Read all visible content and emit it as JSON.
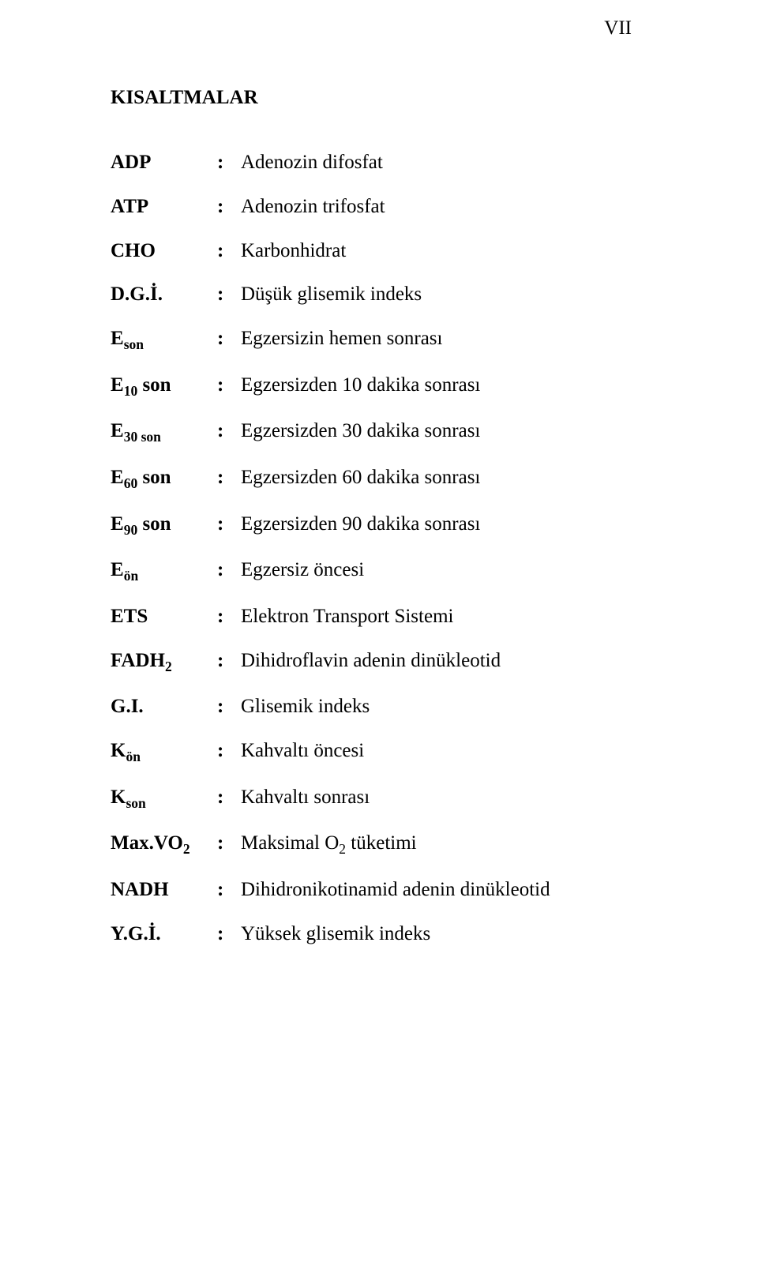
{
  "page_number": "VII",
  "heading": "KISALTMALAR",
  "rows": [
    {
      "key_pre": "ADP",
      "key_sub": "",
      "key_post": "",
      "sep": ":",
      "val_pre": "Adenozin difosfat",
      "val_sub": "",
      "val_post": ""
    },
    {
      "key_pre": "ATP",
      "key_sub": "",
      "key_post": "",
      "sep": ":",
      "val_pre": "Adenozin trifosfat",
      "val_sub": "",
      "val_post": ""
    },
    {
      "key_pre": "CHO",
      "key_sub": "",
      "key_post": "",
      "sep": ":",
      "val_pre": "Karbonhidrat",
      "val_sub": "",
      "val_post": ""
    },
    {
      "key_pre": "D.G.İ.",
      "key_sub": "",
      "key_post": "",
      "sep": ":",
      "val_pre": "Düşük glisemik indeks",
      "val_sub": "",
      "val_post": ""
    },
    {
      "key_pre": "E",
      "key_sub": "son",
      "key_post": "",
      "sep": ":",
      "val_pre": "Egzersizin hemen sonrası",
      "val_sub": "",
      "val_post": ""
    },
    {
      "key_pre": "E",
      "key_sub": "10",
      "key_post": " son",
      "sep": ":",
      "val_pre": "Egzersizden 10 dakika sonrası",
      "val_sub": "",
      "val_post": ""
    },
    {
      "key_pre": "E",
      "key_sub": "30 son",
      "key_post": "",
      "sep": ":",
      "val_pre": "Egzersizden 30 dakika sonrası",
      "val_sub": "",
      "val_post": ""
    },
    {
      "key_pre": "E",
      "key_sub": "60",
      "key_post": " son",
      "sep": ":",
      "val_pre": "Egzersizden 60 dakika sonrası",
      "val_sub": "",
      "val_post": ""
    },
    {
      "key_pre": "E",
      "key_sub": "90",
      "key_post": " son",
      "sep": ":",
      "val_pre": "Egzersizden 90 dakika sonrası",
      "val_sub": "",
      "val_post": ""
    },
    {
      "key_pre": "E",
      "key_sub": "ön",
      "key_post": "",
      "sep": ":",
      "val_pre": "Egzersiz öncesi",
      "val_sub": "",
      "val_post": ""
    },
    {
      "key_pre": "ETS",
      "key_sub": "",
      "key_post": "",
      "sep": ":",
      "val_pre": "Elektron Transport Sistemi",
      "val_sub": "",
      "val_post": ""
    },
    {
      "key_pre": "FADH",
      "key_sub": "2",
      "key_post": "",
      "sep": ":",
      "val_pre": "Dihidroflavin adenin dinükleotid",
      "val_sub": "",
      "val_post": ""
    },
    {
      "key_pre": "G.I.",
      "key_sub": "",
      "key_post": "",
      "sep": ":",
      "val_pre": "Glisemik indeks",
      "val_sub": "",
      "val_post": ""
    },
    {
      "key_pre": "K",
      "key_sub": "ön",
      "key_post": "",
      "sep": ":",
      "val_pre": "Kahvaltı öncesi",
      "val_sub": "",
      "val_post": ""
    },
    {
      "key_pre": "K",
      "key_sub": "son",
      "key_post": "",
      "sep": ":",
      "val_pre": "Kahvaltı sonrası",
      "val_sub": "",
      "val_post": ""
    },
    {
      "key_pre": "Max.VO",
      "key_sub": "2",
      "key_post": "",
      "sep": ":",
      "val_pre": "Maksimal O",
      "val_sub": "2",
      "val_post": " tüketimi"
    },
    {
      "key_pre": "NADH",
      "key_sub": "",
      "key_post": "",
      "sep": ":",
      "val_pre": "Dihidronikotinamid adenin dinükleotid",
      "val_sub": "",
      "val_post": ""
    },
    {
      "key_pre": "Y.G.İ.",
      "key_sub": "",
      "key_post": "",
      "sep": ":",
      "val_pre": "Yüksek glisemik indeks",
      "val_sub": "",
      "val_post": ""
    }
  ]
}
